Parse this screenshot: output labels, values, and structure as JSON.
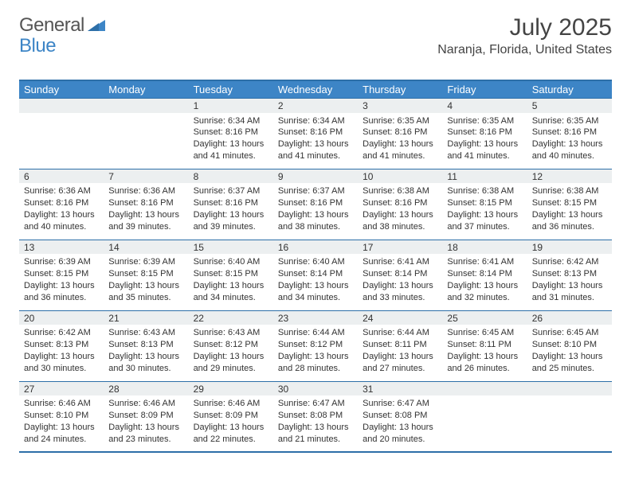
{
  "logo": {
    "general": "General",
    "blue": "Blue"
  },
  "title": "July 2025",
  "location": "Naranja, Florida, United States",
  "colors": {
    "header_bg": "#3d85c6",
    "header_text": "#ffffff",
    "border": "#2d6fa8",
    "daynum_bg": "#eceff0",
    "text": "#333333",
    "logo_gray": "#555555",
    "logo_blue": "#3d85c6"
  },
  "typography": {
    "title_fontsize": 30,
    "location_fontsize": 16,
    "header_fontsize": 13,
    "daynum_fontsize": 12,
    "cell_fontsize": 11
  },
  "day_headers": [
    "Sunday",
    "Monday",
    "Tuesday",
    "Wednesday",
    "Thursday",
    "Friday",
    "Saturday"
  ],
  "weeks": [
    [
      null,
      null,
      {
        "n": "1",
        "sunrise": "6:34 AM",
        "sunset": "8:16 PM",
        "daylight": "13 hours and 41 minutes."
      },
      {
        "n": "2",
        "sunrise": "6:34 AM",
        "sunset": "8:16 PM",
        "daylight": "13 hours and 41 minutes."
      },
      {
        "n": "3",
        "sunrise": "6:35 AM",
        "sunset": "8:16 PM",
        "daylight": "13 hours and 41 minutes."
      },
      {
        "n": "4",
        "sunrise": "6:35 AM",
        "sunset": "8:16 PM",
        "daylight": "13 hours and 41 minutes."
      },
      {
        "n": "5",
        "sunrise": "6:35 AM",
        "sunset": "8:16 PM",
        "daylight": "13 hours and 40 minutes."
      }
    ],
    [
      {
        "n": "6",
        "sunrise": "6:36 AM",
        "sunset": "8:16 PM",
        "daylight": "13 hours and 40 minutes."
      },
      {
        "n": "7",
        "sunrise": "6:36 AM",
        "sunset": "8:16 PM",
        "daylight": "13 hours and 39 minutes."
      },
      {
        "n": "8",
        "sunrise": "6:37 AM",
        "sunset": "8:16 PM",
        "daylight": "13 hours and 39 minutes."
      },
      {
        "n": "9",
        "sunrise": "6:37 AM",
        "sunset": "8:16 PM",
        "daylight": "13 hours and 38 minutes."
      },
      {
        "n": "10",
        "sunrise": "6:38 AM",
        "sunset": "8:16 PM",
        "daylight": "13 hours and 38 minutes."
      },
      {
        "n": "11",
        "sunrise": "6:38 AM",
        "sunset": "8:15 PM",
        "daylight": "13 hours and 37 minutes."
      },
      {
        "n": "12",
        "sunrise": "6:38 AM",
        "sunset": "8:15 PM",
        "daylight": "13 hours and 36 minutes."
      }
    ],
    [
      {
        "n": "13",
        "sunrise": "6:39 AM",
        "sunset": "8:15 PM",
        "daylight": "13 hours and 36 minutes."
      },
      {
        "n": "14",
        "sunrise": "6:39 AM",
        "sunset": "8:15 PM",
        "daylight": "13 hours and 35 minutes."
      },
      {
        "n": "15",
        "sunrise": "6:40 AM",
        "sunset": "8:15 PM",
        "daylight": "13 hours and 34 minutes."
      },
      {
        "n": "16",
        "sunrise": "6:40 AM",
        "sunset": "8:14 PM",
        "daylight": "13 hours and 34 minutes."
      },
      {
        "n": "17",
        "sunrise": "6:41 AM",
        "sunset": "8:14 PM",
        "daylight": "13 hours and 33 minutes."
      },
      {
        "n": "18",
        "sunrise": "6:41 AM",
        "sunset": "8:14 PM",
        "daylight": "13 hours and 32 minutes."
      },
      {
        "n": "19",
        "sunrise": "6:42 AM",
        "sunset": "8:13 PM",
        "daylight": "13 hours and 31 minutes."
      }
    ],
    [
      {
        "n": "20",
        "sunrise": "6:42 AM",
        "sunset": "8:13 PM",
        "daylight": "13 hours and 30 minutes."
      },
      {
        "n": "21",
        "sunrise": "6:43 AM",
        "sunset": "8:13 PM",
        "daylight": "13 hours and 30 minutes."
      },
      {
        "n": "22",
        "sunrise": "6:43 AM",
        "sunset": "8:12 PM",
        "daylight": "13 hours and 29 minutes."
      },
      {
        "n": "23",
        "sunrise": "6:44 AM",
        "sunset": "8:12 PM",
        "daylight": "13 hours and 28 minutes."
      },
      {
        "n": "24",
        "sunrise": "6:44 AM",
        "sunset": "8:11 PM",
        "daylight": "13 hours and 27 minutes."
      },
      {
        "n": "25",
        "sunrise": "6:45 AM",
        "sunset": "8:11 PM",
        "daylight": "13 hours and 26 minutes."
      },
      {
        "n": "26",
        "sunrise": "6:45 AM",
        "sunset": "8:10 PM",
        "daylight": "13 hours and 25 minutes."
      }
    ],
    [
      {
        "n": "27",
        "sunrise": "6:46 AM",
        "sunset": "8:10 PM",
        "daylight": "13 hours and 24 minutes."
      },
      {
        "n": "28",
        "sunrise": "6:46 AM",
        "sunset": "8:09 PM",
        "daylight": "13 hours and 23 minutes."
      },
      {
        "n": "29",
        "sunrise": "6:46 AM",
        "sunset": "8:09 PM",
        "daylight": "13 hours and 22 minutes."
      },
      {
        "n": "30",
        "sunrise": "6:47 AM",
        "sunset": "8:08 PM",
        "daylight": "13 hours and 21 minutes."
      },
      {
        "n": "31",
        "sunrise": "6:47 AM",
        "sunset": "8:08 PM",
        "daylight": "13 hours and 20 minutes."
      },
      null,
      null
    ]
  ],
  "labels": {
    "sunrise": "Sunrise: ",
    "sunset": "Sunset: ",
    "daylight": "Daylight: "
  }
}
